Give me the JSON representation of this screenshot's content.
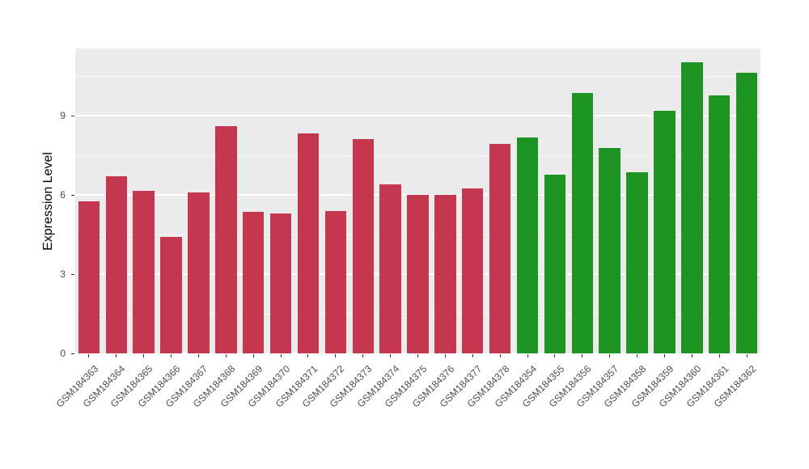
{
  "chart_data": {
    "type": "bar",
    "title": "",
    "xlabel": "",
    "ylabel": "Expression Level",
    "ylim": [
      0,
      11.55
    ],
    "yticks": [
      0,
      3,
      6,
      9
    ],
    "minor_yticks": [
      1.5,
      4.5,
      7.5,
      10.5
    ],
    "grid": true,
    "legend_position": "none",
    "plot_bg": "#EBEBEB",
    "grid_color": "#FFFFFF",
    "group_colors": {
      "group1": "#C5364F",
      "group2": "#1E9423"
    },
    "bars": [
      {
        "label": "GSM184363",
        "value": 5.76,
        "group": "group1"
      },
      {
        "label": "GSM184364",
        "value": 6.72,
        "group": "group1"
      },
      {
        "label": "GSM184365",
        "value": 6.17,
        "group": "group1"
      },
      {
        "label": "GSM184366",
        "value": 4.41,
        "group": "group1"
      },
      {
        "label": "GSM184367",
        "value": 6.1,
        "group": "group1"
      },
      {
        "label": "GSM184368",
        "value": 8.6,
        "group": "group1"
      },
      {
        "label": "GSM184369",
        "value": 5.36,
        "group": "group1"
      },
      {
        "label": "GSM184370",
        "value": 5.3,
        "group": "group1"
      },
      {
        "label": "GSM184371",
        "value": 8.32,
        "group": "group1"
      },
      {
        "label": "GSM184372",
        "value": 5.39,
        "group": "group1"
      },
      {
        "label": "GSM184373",
        "value": 8.11,
        "group": "group1"
      },
      {
        "label": "GSM184374",
        "value": 6.41,
        "group": "group1"
      },
      {
        "label": "GSM184375",
        "value": 6.01,
        "group": "group1"
      },
      {
        "label": "GSM184376",
        "value": 6.01,
        "group": "group1"
      },
      {
        "label": "GSM184377",
        "value": 6.26,
        "group": "group1"
      },
      {
        "label": "GSM184378",
        "value": 7.95,
        "group": "group1"
      },
      {
        "label": "GSM184354",
        "value": 8.17,
        "group": "group2"
      },
      {
        "label": "GSM184355",
        "value": 6.78,
        "group": "group2"
      },
      {
        "label": "GSM184356",
        "value": 9.86,
        "group": "group2"
      },
      {
        "label": "GSM184357",
        "value": 7.77,
        "group": "group2"
      },
      {
        "label": "GSM184358",
        "value": 6.87,
        "group": "group2"
      },
      {
        "label": "GSM184359",
        "value": 9.19,
        "group": "group2"
      },
      {
        "label": "GSM184360",
        "value": 11.03,
        "group": "group2"
      },
      {
        "label": "GSM184361",
        "value": 9.77,
        "group": "group2"
      },
      {
        "label": "GSM184362",
        "value": 10.63,
        "group": "group2"
      }
    ]
  }
}
